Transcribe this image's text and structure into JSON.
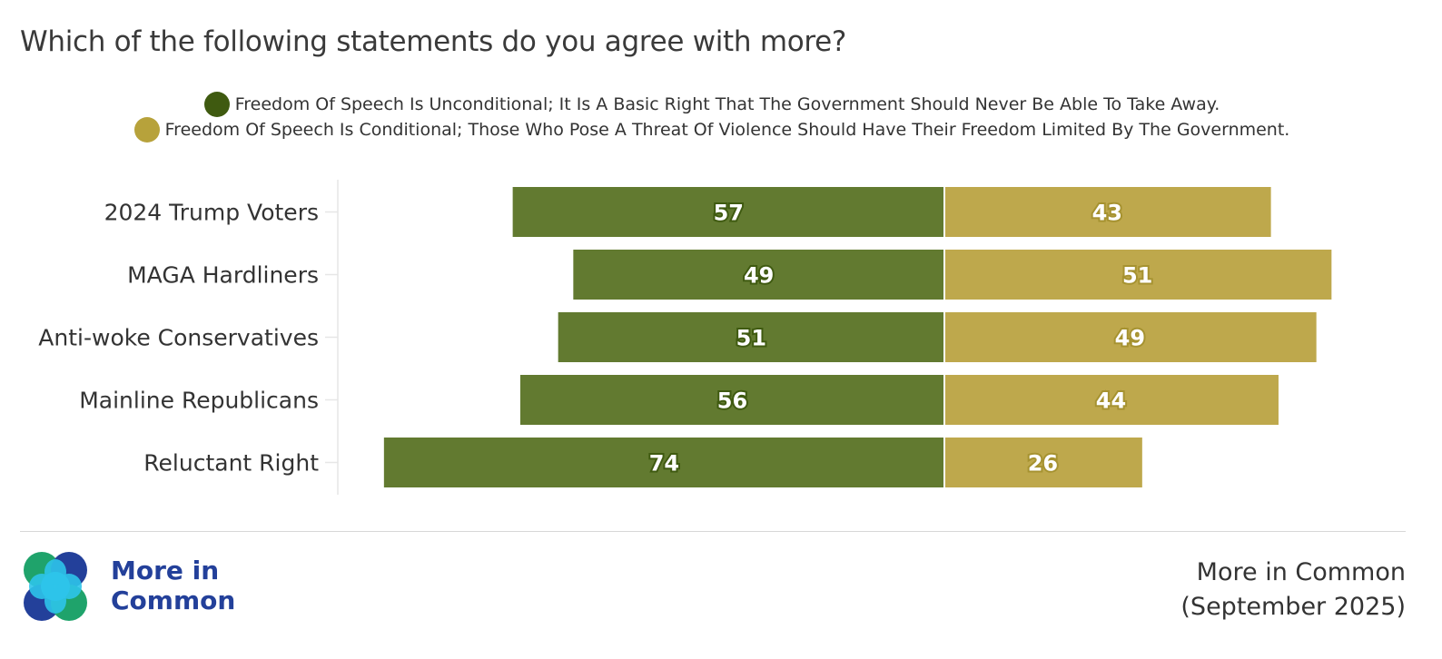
{
  "title": "Which of the following statements do you agree with more?",
  "legend": [
    {
      "label": "Freedom Of Speech Is Unconditional; It Is A Basic Right That The Government Should Never Be Able To Take Away.",
      "color": "#3f5a10"
    },
    {
      "label": "Freedom Of Speech Is Conditional; Those Who Pose A Threat Of Violence Should Have Their Freedom Limited By The Government.",
      "color": "#b7a23b"
    }
  ],
  "chart_data": {
    "type": "bar",
    "orientation": "horizontal-diverging",
    "title": "Which of the following statements do you agree with more?",
    "categories": [
      "2024 Trump Voters",
      "MAGA Hardliners",
      "Anti-woke Conservatives",
      "Mainline Republicans",
      "Reluctant Right"
    ],
    "series": [
      {
        "name": "Freedom Of Speech Is Unconditional; It Is A Basic Right That The Government Should Never Be Able To Take Away.",
        "values": [
          57,
          49,
          51,
          56,
          74
        ],
        "color": "#627a30",
        "label_stroke": "#3f5a10"
      },
      {
        "name": "Freedom Of Speech Is Conditional; Those Who Pose A Threat Of Violence Should Have Their Freedom Limited By The Government.",
        "values": [
          43,
          51,
          49,
          44,
          26
        ],
        "color": "#bea84c",
        "label_stroke": "#a69230"
      }
    ],
    "xlim": [
      -100,
      100
    ],
    "legend_position": "top-center"
  },
  "brand": {
    "line1": "More in",
    "line2": "Common"
  },
  "source": {
    "line1": "More in Common",
    "line2": "(September 2025)"
  }
}
